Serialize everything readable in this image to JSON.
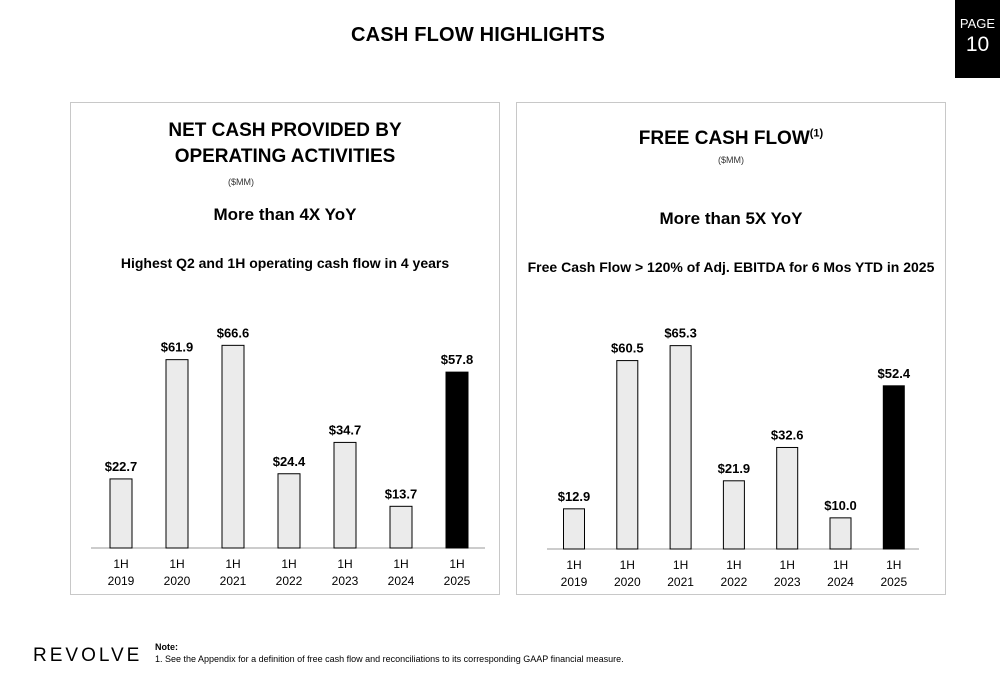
{
  "header": {
    "title": "CASH FLOW HIGHLIGHTS",
    "page_label": "PAGE",
    "page_number": "10"
  },
  "left_panel": {
    "title_line1": "NET CASH PROVIDED BY",
    "title_line2": "OPERATING ACTIVITIES",
    "unit": "($MM)",
    "subtitle": "More than 4X YoY",
    "note": "Highest Q2 and 1H operating cash flow in 4 years"
  },
  "right_panel": {
    "title": "FREE CASH FLOW",
    "title_sup": "(1)",
    "unit": "($MM)",
    "subtitle": "More than 5X YoY",
    "note": "Free Cash Flow > 120% of Adj. EBITDA for 6 Mos YTD in 2025"
  },
  "colors": {
    "bar": "#ebebeb",
    "bar_highlight": "#000000",
    "bar_stroke": "#000000",
    "axis": "#999999"
  },
  "chart_data": [
    {
      "type": "bar",
      "title": "NET CASH PROVIDED BY OPERATING ACTIVITIES",
      "ylabel": "($MM)",
      "categories": [
        [
          "1H",
          "2019"
        ],
        [
          "1H",
          "2020"
        ],
        [
          "1H",
          "2021"
        ],
        [
          "1H",
          "2022"
        ],
        [
          "1H",
          "2023"
        ],
        [
          "1H",
          "2024"
        ],
        [
          "1H",
          "2025"
        ]
      ],
      "values": [
        22.7,
        61.9,
        66.6,
        24.4,
        34.7,
        13.7,
        57.8
      ],
      "labels": [
        "$22.7",
        "$61.9",
        "$66.6",
        "$24.4",
        "$34.7",
        "$13.7",
        "$57.8"
      ],
      "highlight_index": 6,
      "ylim": [
        0,
        70
      ],
      "grid": false
    },
    {
      "type": "bar",
      "title": "FREE CASH FLOW(1)",
      "ylabel": "($MM)",
      "categories": [
        [
          "1H",
          "2019"
        ],
        [
          "1H",
          "2020"
        ],
        [
          "1H",
          "2021"
        ],
        [
          "1H",
          "2022"
        ],
        [
          "1H",
          "2023"
        ],
        [
          "1H",
          "2024"
        ],
        [
          "1H",
          "2025"
        ]
      ],
      "values": [
        12.9,
        60.5,
        65.3,
        21.9,
        32.6,
        10.0,
        52.4
      ],
      "labels": [
        "$12.9",
        "$60.5",
        "$65.3",
        "$21.9",
        "$32.6",
        "$10.0",
        "$52.4"
      ],
      "highlight_index": 6,
      "ylim": [
        0,
        70
      ],
      "grid": false
    }
  ],
  "footer": {
    "logo": "REVOLVE",
    "note_heading": "Note:",
    "note_text": "1.  See the Appendix for a definition of free cash flow and reconciliations to its corresponding GAAP financial measure."
  }
}
